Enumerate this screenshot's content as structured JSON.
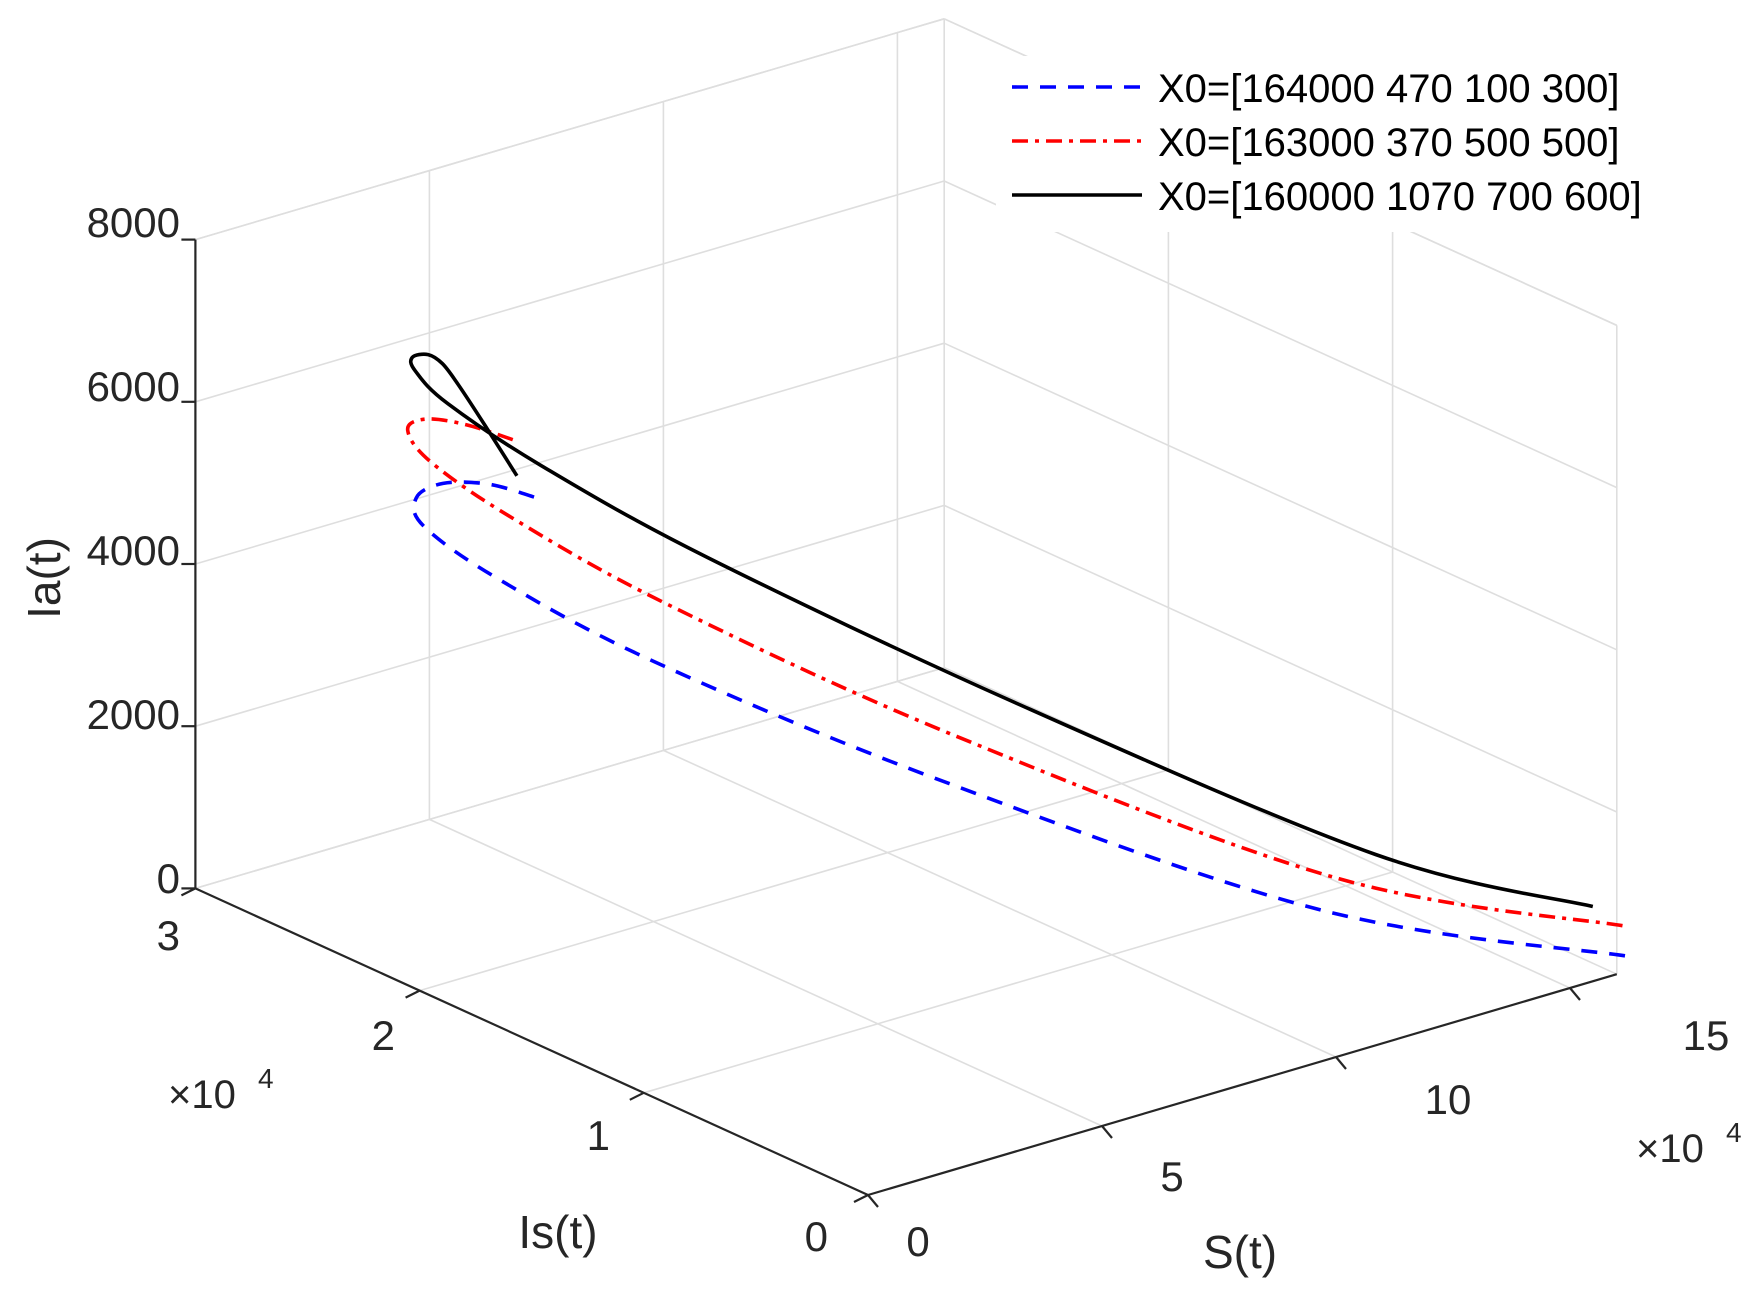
{
  "chart_data": {
    "type": "line3d",
    "title": "",
    "axes": {
      "x": {
        "label": "S(t)",
        "range": [
          0,
          16
        ],
        "ticks": [
          0,
          5,
          10,
          15
        ],
        "tick_labels": [
          "0",
          "5",
          "10",
          "15"
        ],
        "multiplier": "×10",
        "multiplier_exponent": "4"
      },
      "y": {
        "label": "Is(t)",
        "range": [
          0,
          3
        ],
        "ticks": [
          0,
          1,
          2,
          3
        ],
        "tick_labels": [
          "0",
          "1",
          "2",
          "3"
        ],
        "multiplier": "×10",
        "multiplier_exponent": "4"
      },
      "z": {
        "label": "Ia(t)",
        "range": [
          0,
          8000
        ],
        "ticks": [
          0,
          2000,
          4000,
          6000,
          8000
        ],
        "tick_labels": [
          "0",
          "2000",
          "4000",
          "6000",
          "8000"
        ]
      }
    },
    "grid": true,
    "legend_position": "top-right",
    "series": [
      {
        "name": "X0=[164000 470 100 300]",
        "color": "#0000ff",
        "style": "dashed",
        "points": [
          [
            16.4,
            0.047,
            100
          ],
          [
            13.5,
            0.8,
            210
          ],
          [
            11.0,
            2.0,
            750
          ],
          [
            8.6,
            2.75,
            1650
          ],
          [
            6.5,
            3.0,
            2700
          ],
          [
            4.5,
            2.92,
            3800
          ],
          [
            2.9,
            2.62,
            4800
          ],
          [
            1.7,
            2.25,
            5650
          ],
          [
            1.0,
            1.9,
            6200
          ],
          [
            0.65,
            1.62,
            6450
          ]
        ]
      },
      {
        "name": "X0=[163000 370 500 500]",
        "color": "#ff0000",
        "style": "dash-dot",
        "points": [
          [
            16.3,
            0.037,
            500
          ],
          [
            13.6,
            0.75,
            650
          ],
          [
            11.2,
            1.95,
            1300
          ],
          [
            8.9,
            2.75,
            2300
          ],
          [
            6.8,
            3.0,
            3400
          ],
          [
            4.8,
            2.95,
            4500
          ],
          [
            3.1,
            2.7,
            5500
          ],
          [
            1.8,
            2.35,
            6300
          ],
          [
            0.9,
            1.98,
            6850
          ],
          [
            0.4,
            1.65,
            7150
          ]
        ]
      },
      {
        "name": "X0=[160000 1070 700 600]",
        "color": "#000000",
        "style": "solid",
        "points": [
          [
            16.0,
            0.107,
            700
          ],
          [
            14.2,
            0.7,
            900
          ],
          [
            12.0,
            1.85,
            1700
          ],
          [
            9.6,
            2.72,
            2800
          ],
          [
            7.4,
            3.0,
            3950
          ],
          [
            5.3,
            2.98,
            5100
          ],
          [
            3.5,
            2.75,
            6100
          ],
          [
            2.0,
            2.45,
            6900
          ],
          [
            0.9,
            2.15,
            7500
          ],
          [
            0.25,
            1.95,
            7750
          ],
          [
            0.1,
            1.85,
            7650
          ],
          [
            0.2,
            1.75,
            7250
          ],
          [
            0.45,
            1.66,
            6700
          ]
        ]
      }
    ]
  }
}
